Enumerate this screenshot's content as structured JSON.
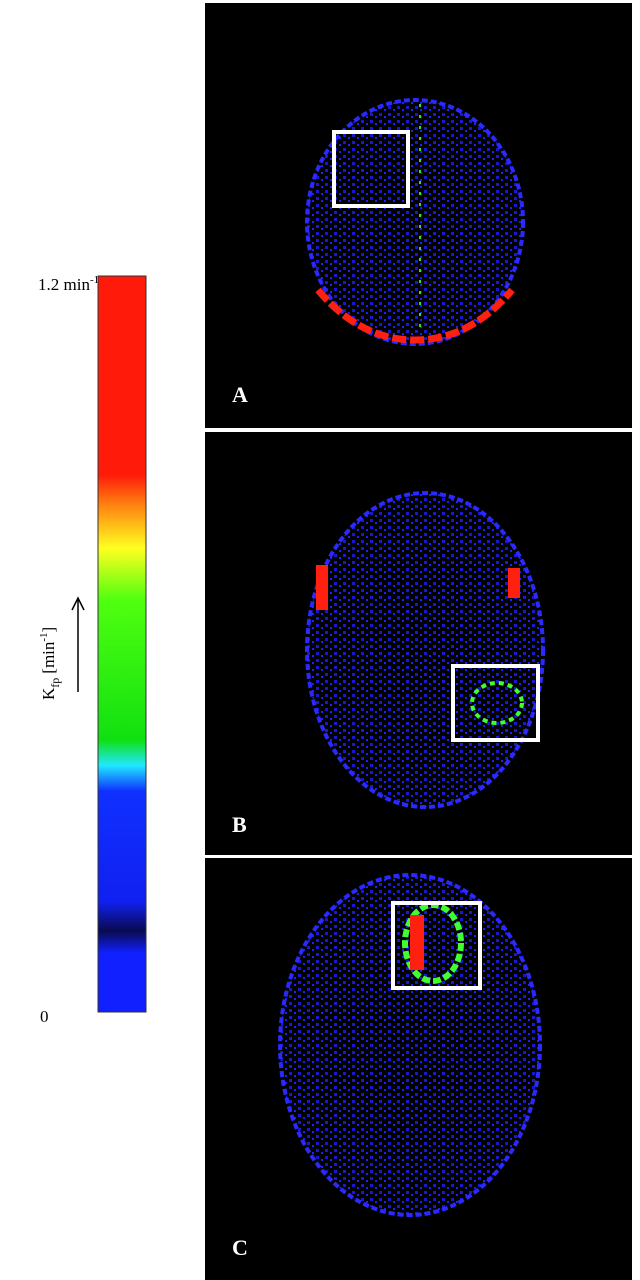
{
  "colorbar": {
    "max_value": "1.2 min",
    "max_unit_sup": "-1",
    "min_value": "0",
    "axis_label": {
      "symbol": "K",
      "subscript": "fp",
      "unit": "[min",
      "unit_sup": "-1",
      "close": "]"
    }
  },
  "panels": [
    {
      "label": "A"
    },
    {
      "label": "B"
    },
    {
      "label": "C"
    }
  ]
}
